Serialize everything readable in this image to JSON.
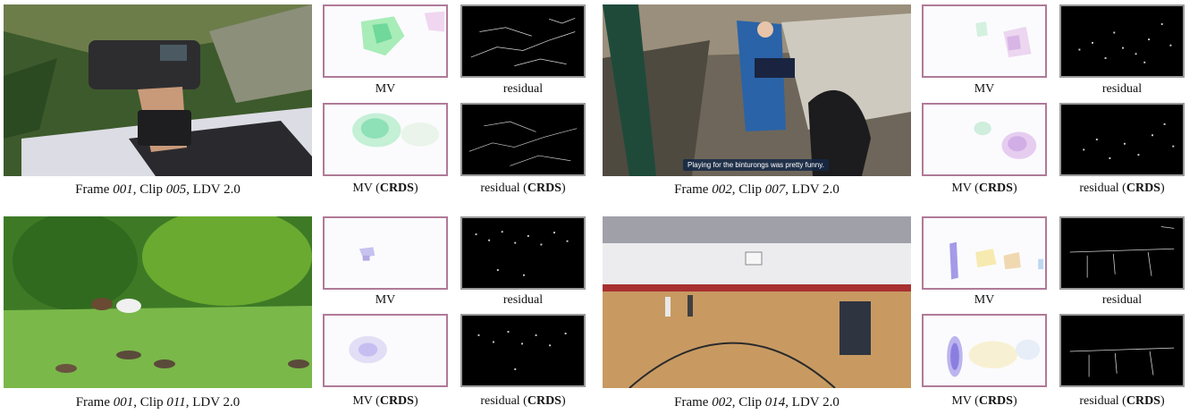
{
  "panels": [
    {
      "caption": {
        "prefix": "Frame ",
        "frame": "001",
        "mid": ", Clip ",
        "clip": "005",
        "suffix": ", LDV 2.0"
      },
      "labels": {
        "mv": "MV",
        "residual": "residual",
        "mv_crds_prefix": "MV (",
        "residual_crds_prefix": "residual (",
        "crds": "CRDS",
        "close": ")"
      },
      "subtitle": ""
    },
    {
      "caption": {
        "prefix": "Frame ",
        "frame": "002",
        "mid": ", Clip ",
        "clip": "007",
        "suffix": ", LDV 2.0"
      },
      "labels": {
        "mv": "MV",
        "residual": "residual",
        "mv_crds_prefix": "MV (",
        "residual_crds_prefix": "residual (",
        "crds": "CRDS",
        "close": ")"
      },
      "subtitle": "Playing for the binturongs was pretty funny."
    },
    {
      "caption": {
        "prefix": "Frame ",
        "frame": "001",
        "mid": ", Clip ",
        "clip": "011",
        "suffix": ", LDV 2.0"
      },
      "labels": {
        "mv": "MV",
        "residual": "residual",
        "mv_crds_prefix": "MV (",
        "residual_crds_prefix": "residual (",
        "crds": "CRDS",
        "close": ")"
      },
      "subtitle": ""
    },
    {
      "caption": {
        "prefix": "Frame ",
        "frame": "002",
        "mid": ", Clip ",
        "clip": "014",
        "suffix": ", LDV 2.0"
      },
      "labels": {
        "mv": "MV",
        "residual": "residual",
        "mv_crds_prefix": "MV (",
        "residual_crds_prefix": "residual (",
        "crds": "CRDS",
        "close": ")"
      },
      "subtitle": ""
    }
  ],
  "colors": {
    "mv_border": "#b07a98",
    "residual_border": "#9a9a9a"
  }
}
